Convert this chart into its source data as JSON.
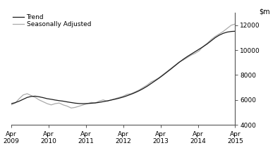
{
  "ylim": [
    4000,
    13000
  ],
  "yticks": [
    4000,
    6000,
    8000,
    10000,
    12000
  ],
  "legend_entries": [
    "Trend",
    "Seasonally Adjusted"
  ],
  "trend_color": "#1a1a1a",
  "seasonal_color": "#aaaaaa",
  "background_color": "#ffffff",
  "x_tick_labels": [
    "Apr\n2009",
    "Apr\n2010",
    "Apr\n2011",
    "Apr\n2012",
    "Apr\n2013",
    "Apr\n2014",
    "Apr\n2015"
  ],
  "trend_data": [
    5700,
    5780,
    5900,
    6050,
    6200,
    6280,
    6300,
    6250,
    6180,
    6100,
    6050,
    5990,
    5940,
    5900,
    5840,
    5790,
    5740,
    5710,
    5700,
    5710,
    5730,
    5760,
    5800,
    5860,
    5920,
    5990,
    6060,
    6140,
    6230,
    6340,
    6460,
    6590,
    6740,
    6910,
    7100,
    7320,
    7540,
    7760,
    8000,
    8250,
    8500,
    8760,
    9020,
    9260,
    9480,
    9680,
    9880,
    10080,
    10280,
    10500,
    10750,
    11000,
    11200,
    11350,
    11450,
    11500,
    11520
  ],
  "seasonal_data": [
    5600,
    5750,
    6100,
    6400,
    6500,
    6350,
    6200,
    6000,
    5850,
    5700,
    5600,
    5700,
    5750,
    5600,
    5500,
    5350,
    5400,
    5500,
    5600,
    5700,
    5800,
    5750,
    5900,
    6000,
    5900,
    6000,
    6100,
    6200,
    6300,
    6450,
    6500,
    6650,
    6800,
    7000,
    7200,
    7450,
    7600,
    7800,
    8050,
    8300,
    8550,
    8800,
    9050,
    9200,
    9400,
    9600,
    9750,
    9950,
    10300,
    10550,
    10850,
    11100,
    11300,
    11500,
    11750,
    12000,
    12100
  ]
}
